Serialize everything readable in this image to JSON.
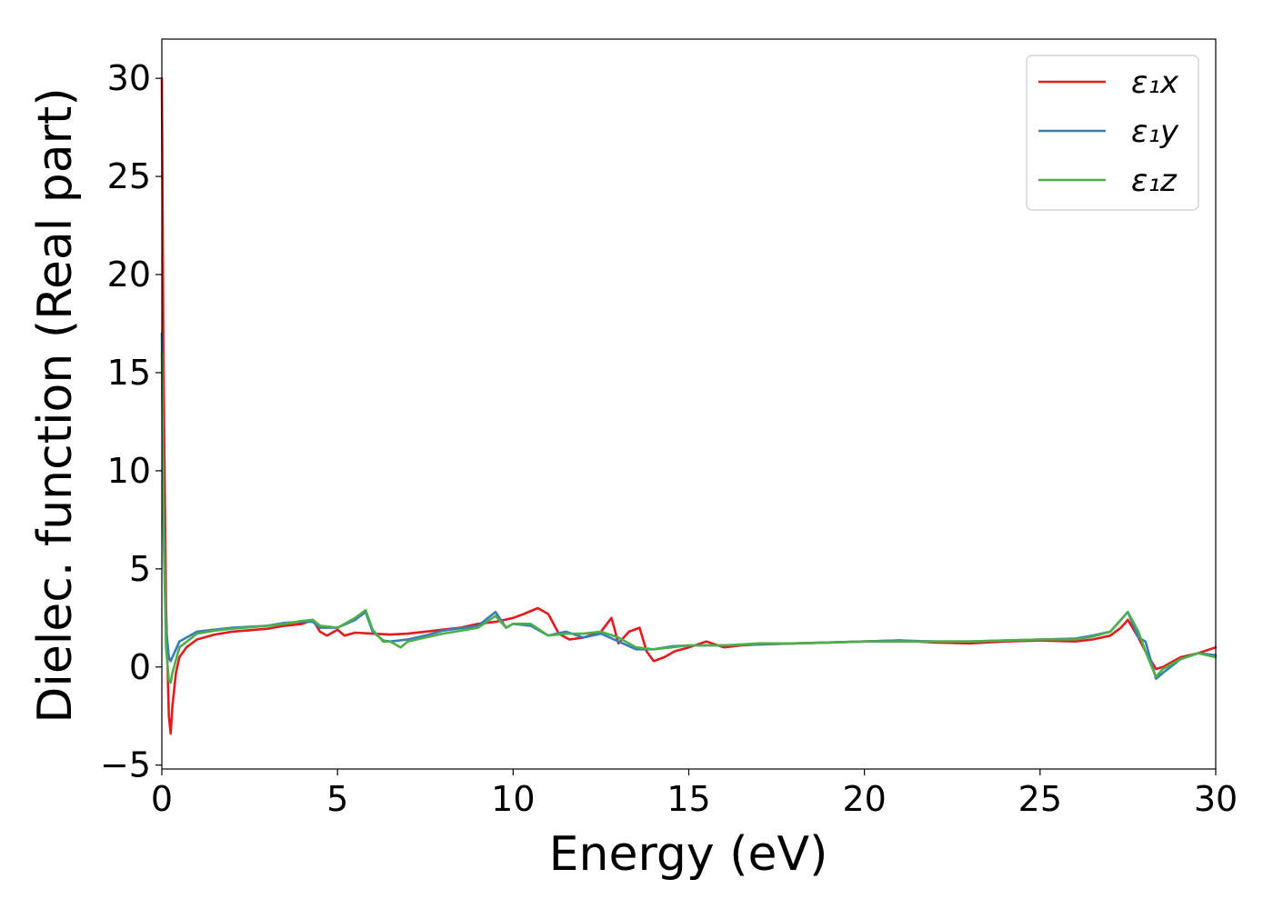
{
  "chart_data": {
    "type": "line",
    "title": "",
    "xlabel": "Energy (eV)",
    "ylabel": "Dielec. function (Real part)",
    "xlim": [
      0,
      30
    ],
    "ylim": [
      -5.2,
      32
    ],
    "xticks": [
      0,
      5,
      10,
      15,
      20,
      25,
      30
    ],
    "yticks": [
      -5,
      0,
      5,
      10,
      15,
      20,
      25,
      30
    ],
    "xtick_labels": [
      "0",
      "5",
      "10",
      "15",
      "20",
      "25",
      "30"
    ],
    "ytick_labels": [
      "−5",
      "0",
      "5",
      "10",
      "15",
      "20",
      "25",
      "30"
    ],
    "grid": false,
    "legend_position": "top-right",
    "series": [
      {
        "name": "ε₁x",
        "color": "#e41a1c",
        "x": [
          0,
          0.05,
          0.12,
          0.2,
          0.25,
          0.3,
          0.4,
          0.5,
          0.7,
          1.0,
          1.5,
          2.0,
          3.0,
          3.5,
          4.0,
          4.3,
          4.5,
          4.7,
          5.0,
          5.2,
          5.5,
          6.0,
          6.5,
          7.0,
          7.5,
          8.0,
          8.5,
          9.0,
          9.5,
          10.0,
          10.3,
          10.7,
          11.0,
          11.3,
          11.6,
          12.0,
          12.5,
          12.8,
          13.0,
          13.3,
          13.6,
          13.8,
          14.0,
          14.3,
          14.6,
          15.0,
          15.5,
          16.0,
          16.5,
          17.0,
          18.0,
          19.0,
          20.0,
          21.0,
          22.0,
          23.0,
          24.0,
          25.0,
          26.0,
          26.5,
          27.0,
          27.3,
          27.5,
          27.8,
          28.0,
          28.3,
          28.5,
          28.8,
          29.0,
          29.5,
          30.0
        ],
        "y": [
          30.0,
          15.0,
          3.0,
          -2.5,
          -3.4,
          -2.0,
          -0.3,
          0.5,
          1.0,
          1.4,
          1.65,
          1.8,
          1.95,
          2.1,
          2.2,
          2.4,
          1.8,
          1.6,
          1.9,
          1.6,
          1.75,
          1.7,
          1.65,
          1.7,
          1.8,
          1.9,
          2.0,
          2.2,
          2.3,
          2.5,
          2.7,
          3.0,
          2.7,
          1.7,
          1.4,
          1.5,
          1.8,
          2.5,
          1.2,
          1.8,
          2.0,
          0.8,
          0.3,
          0.5,
          0.8,
          1.0,
          1.3,
          1.0,
          1.1,
          1.15,
          1.2,
          1.25,
          1.3,
          1.35,
          1.25,
          1.2,
          1.3,
          1.35,
          1.3,
          1.4,
          1.6,
          2.0,
          2.4,
          1.5,
          0.8,
          -0.1,
          0.0,
          0.3,
          0.5,
          0.7,
          1.0
        ]
      },
      {
        "name": "ε₁y",
        "color": "#377eb8",
        "x": [
          0,
          0.05,
          0.12,
          0.2,
          0.25,
          0.3,
          0.5,
          1.0,
          1.5,
          2.0,
          3.0,
          3.5,
          4.0,
          4.3,
          4.5,
          4.8,
          5.0,
          5.5,
          5.8,
          6.0,
          6.3,
          6.5,
          7.0,
          7.5,
          8.0,
          9.0,
          9.5,
          9.8,
          10.0,
          10.5,
          11.0,
          11.5,
          12.0,
          12.5,
          13.0,
          13.5,
          14.0,
          14.5,
          15.0,
          16.0,
          17.0,
          18.0,
          19.0,
          20.0,
          21.0,
          22.0,
          23.0,
          24.0,
          25.0,
          26.0,
          26.5,
          27.0,
          27.5,
          27.8,
          28.0,
          28.3,
          28.5,
          29.0,
          29.5,
          30.0
        ],
        "y": [
          17.0,
          8.0,
          2.0,
          0.5,
          0.3,
          0.5,
          1.3,
          1.8,
          1.9,
          2.0,
          2.1,
          2.25,
          2.3,
          2.3,
          2.0,
          2.0,
          2.0,
          2.4,
          2.8,
          1.8,
          1.35,
          1.3,
          1.4,
          1.6,
          1.85,
          2.1,
          2.8,
          2.0,
          2.2,
          2.1,
          1.6,
          1.8,
          1.5,
          1.7,
          1.3,
          0.9,
          0.9,
          1.05,
          1.1,
          1.1,
          1.15,
          1.2,
          1.25,
          1.3,
          1.35,
          1.3,
          1.3,
          1.35,
          1.4,
          1.45,
          1.6,
          1.8,
          2.8,
          1.5,
          1.3,
          -0.6,
          -0.3,
          0.4,
          0.7,
          0.6
        ]
      },
      {
        "name": "ε₁z",
        "color": "#4daf4a",
        "x": [
          0,
          0.05,
          0.12,
          0.2,
          0.25,
          0.3,
          0.5,
          1.0,
          1.5,
          2.0,
          3.0,
          3.5,
          4.0,
          4.3,
          4.5,
          4.8,
          5.0,
          5.5,
          5.8,
          6.0,
          6.3,
          6.5,
          6.8,
          7.0,
          7.5,
          8.0,
          9.0,
          9.5,
          9.8,
          10.0,
          10.5,
          11.0,
          11.5,
          12.0,
          12.5,
          13.0,
          13.5,
          14.0,
          14.5,
          15.0,
          16.0,
          17.0,
          18.0,
          19.0,
          20.0,
          21.0,
          22.0,
          23.0,
          24.0,
          25.0,
          26.0,
          26.5,
          27.0,
          27.5,
          27.8,
          28.0,
          28.3,
          28.5,
          29.0,
          29.5,
          30.0
        ],
        "y": [
          16.0,
          7.0,
          1.0,
          -0.7,
          -0.8,
          -0.3,
          1.0,
          1.7,
          1.85,
          1.95,
          2.1,
          2.2,
          2.35,
          2.4,
          2.1,
          2.05,
          2.0,
          2.5,
          2.9,
          1.9,
          1.3,
          1.3,
          1.0,
          1.3,
          1.5,
          1.7,
          2.0,
          2.6,
          2.0,
          2.2,
          2.2,
          1.6,
          1.7,
          1.7,
          1.8,
          1.5,
          1.0,
          0.9,
          1.0,
          1.1,
          1.1,
          1.2,
          1.2,
          1.25,
          1.3,
          1.3,
          1.3,
          1.3,
          1.35,
          1.4,
          1.4,
          1.55,
          1.8,
          2.8,
          1.8,
          0.8,
          -0.5,
          -0.1,
          0.4,
          0.7,
          0.5
        ]
      }
    ]
  }
}
